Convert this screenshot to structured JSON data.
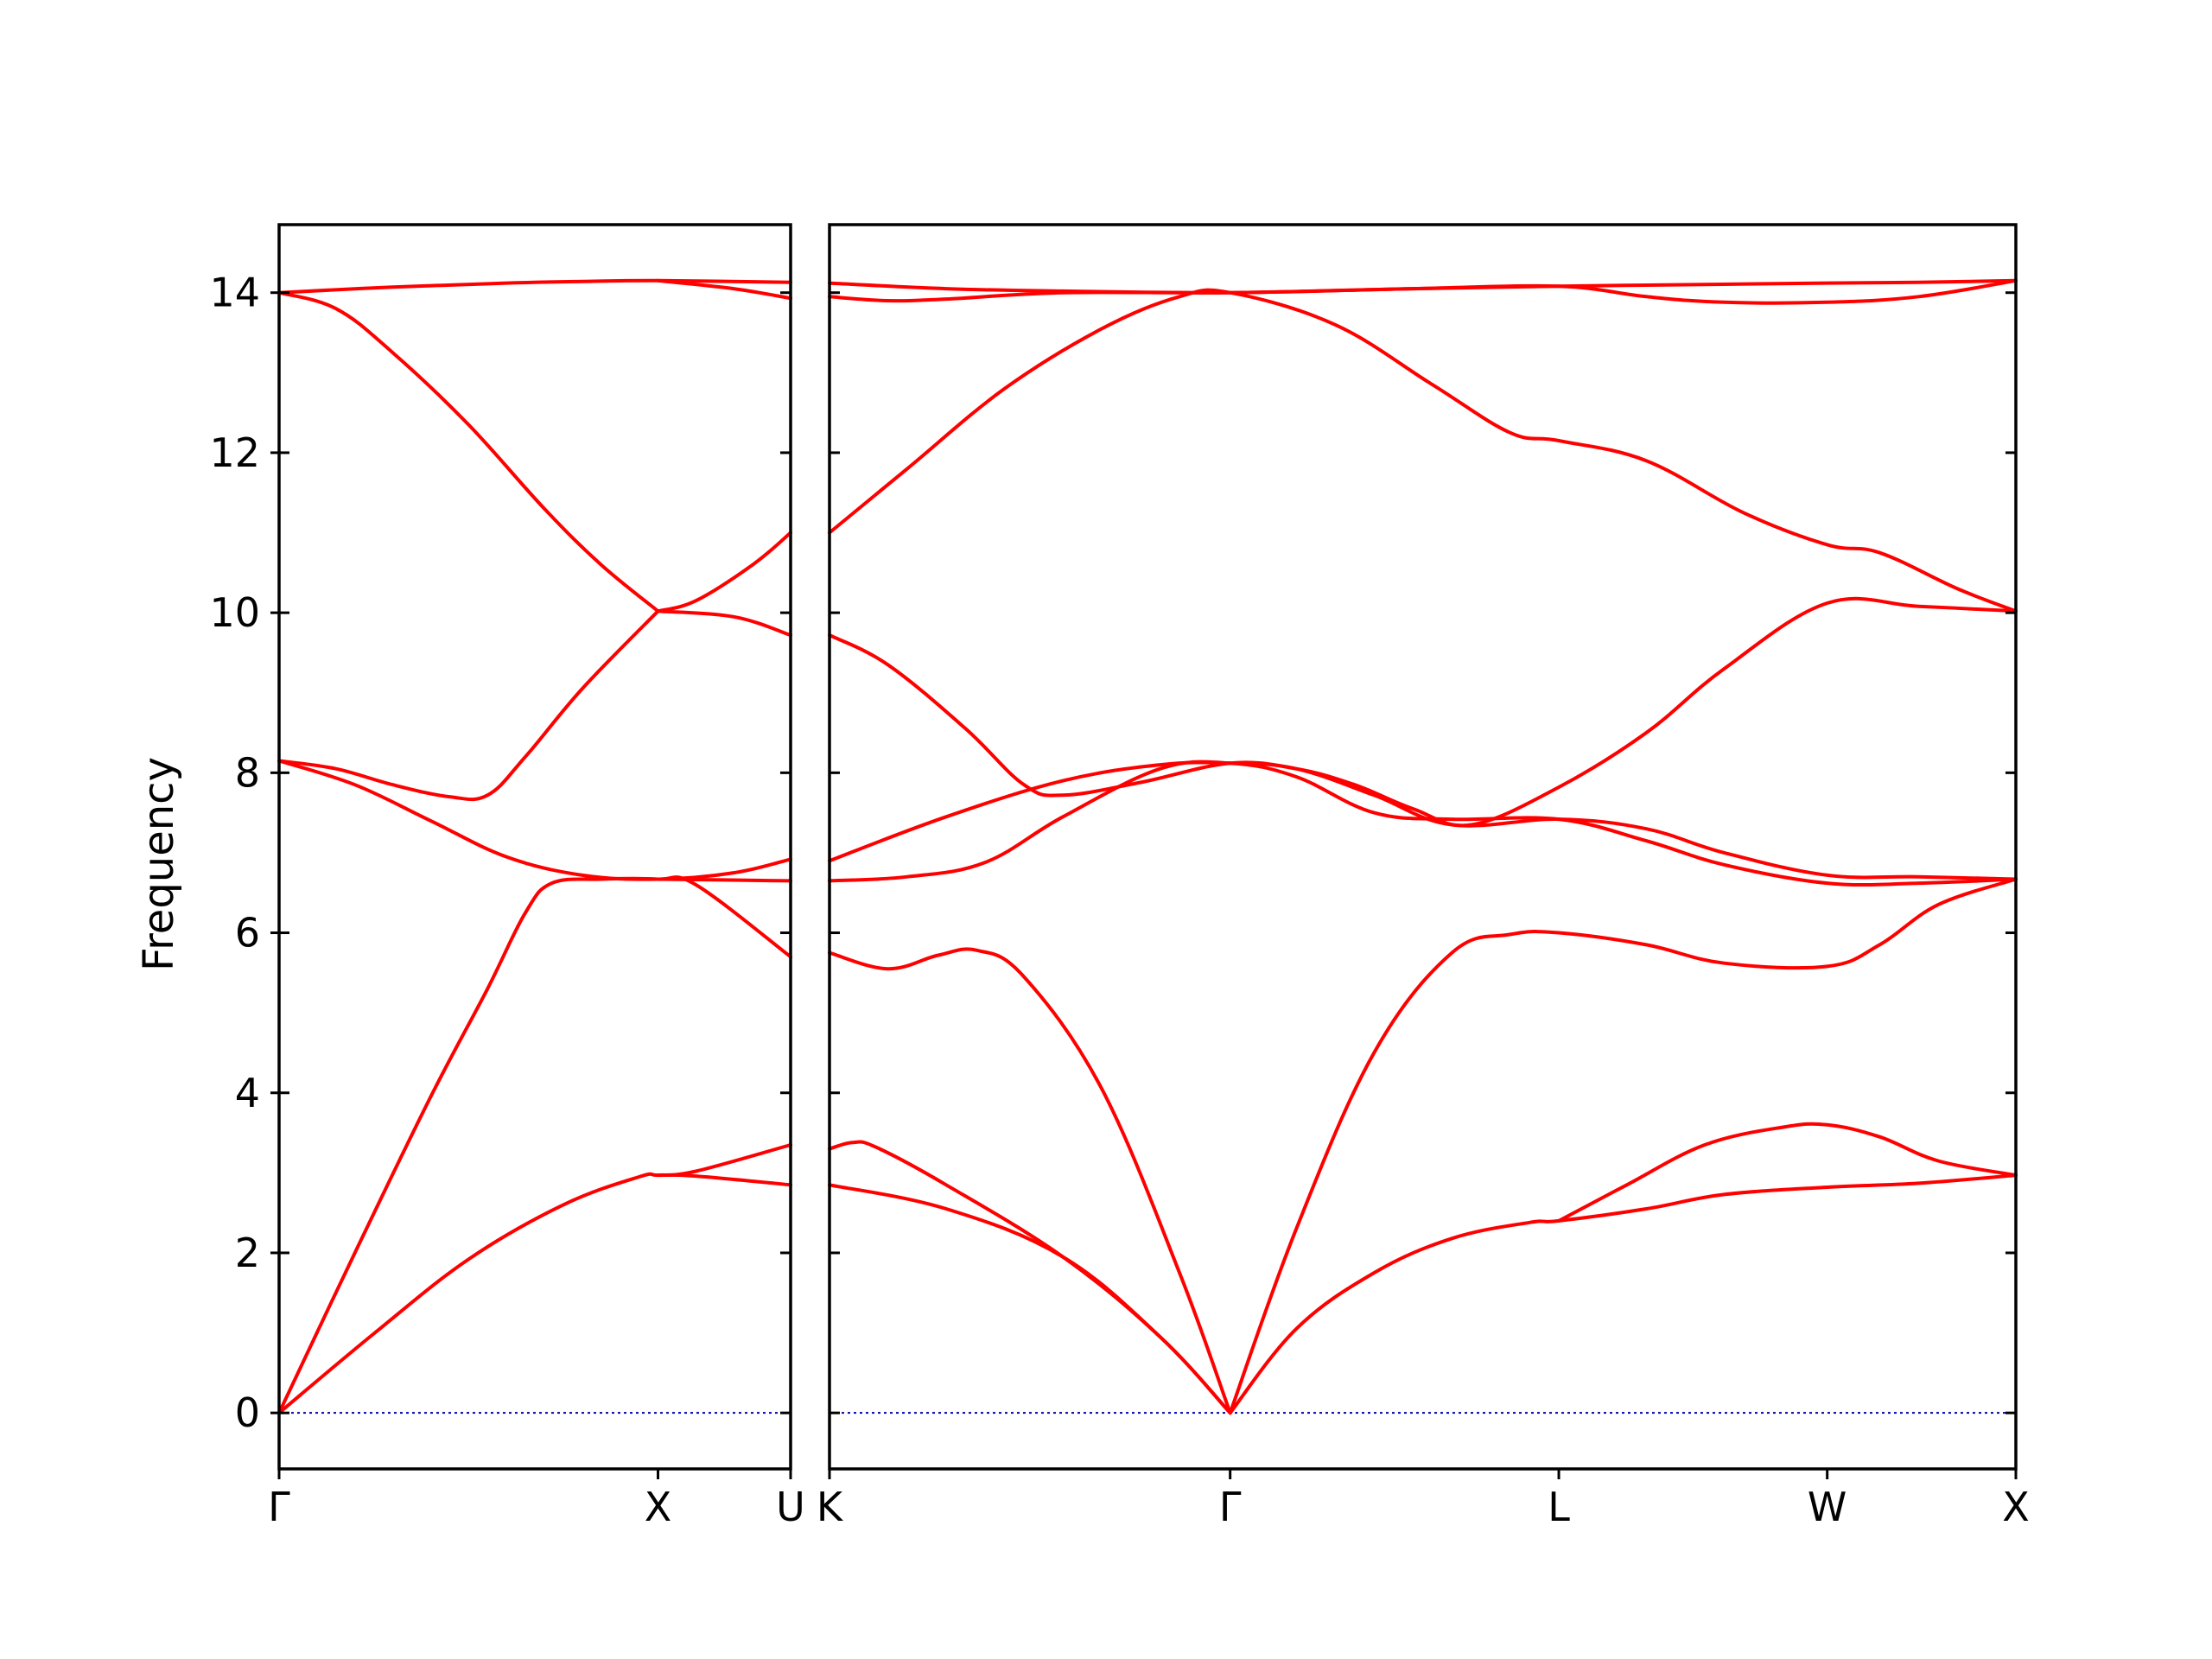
{
  "chart_data": {
    "type": "line",
    "title": "",
    "ylabel": "Frequency",
    "ylim": [
      -0.7,
      14.85
    ],
    "y_ticks": [
      0,
      2,
      4,
      6,
      8,
      10,
      12,
      14
    ],
    "grid": false,
    "line_color": "#ff0000",
    "zero_line_color": "#0000aa",
    "panels": [
      {
        "id": "left",
        "xlim": [
          0,
          1.35
        ],
        "x_ticks": [
          {
            "x": 0,
            "label": "Γ"
          },
          {
            "x": 1.0,
            "label": "X"
          },
          {
            "x": 1.35,
            "label": "U"
          }
        ],
        "zero_line": true,
        "series": [
          {
            "values": [
              [
                0,
                0
              ],
              [
                0.25,
                0.99
              ],
              [
                0.5,
                1.92
              ],
              [
                0.75,
                2.6
              ],
              [
                0.95,
                2.95
              ],
              [
                1.0,
                2.97
              ],
              [
                1.1,
                2.96
              ],
              [
                1.35,
                2.85
              ]
            ]
          },
          {
            "values": [
              [
                1.0,
                2.97
              ],
              [
                1.1,
                3.02
              ],
              [
                1.35,
                3.35
              ]
            ]
          },
          {
            "values": [
              [
                0,
                0
              ],
              [
                0.2,
                2.0
              ],
              [
                0.4,
                3.95
              ],
              [
                0.55,
                5.3
              ],
              [
                0.65,
                6.25
              ],
              [
                0.72,
                6.62
              ],
              [
                0.85,
                6.67
              ],
              [
                1.0,
                6.67
              ],
              [
                1.1,
                6.6
              ],
              [
                1.35,
                5.7
              ]
            ]
          },
          {
            "values": [
              [
                1.0,
                6.67
              ],
              [
                1.35,
                6.65
              ]
            ]
          },
          {
            "values": [
              [
                0,
                8.15
              ],
              [
                0.2,
                7.85
              ],
              [
                0.4,
                7.4
              ],
              [
                0.6,
                6.95
              ],
              [
                0.8,
                6.72
              ],
              [
                1.0,
                6.67
              ],
              [
                1.2,
                6.75
              ],
              [
                1.35,
                6.92
              ]
            ]
          },
          {
            "values": [
              [
                0,
                8.15
              ],
              [
                0.15,
                8.05
              ],
              [
                0.3,
                7.85
              ],
              [
                0.45,
                7.7
              ],
              [
                0.55,
                7.72
              ],
              [
                0.65,
                8.2
              ],
              [
                0.8,
                9.05
              ],
              [
                1.0,
                10.02
              ]
            ]
          },
          {
            "values": [
              [
                0,
                14.0
              ],
              [
                0.15,
                13.8
              ],
              [
                0.3,
                13.25
              ],
              [
                0.5,
                12.35
              ],
              [
                0.7,
                11.3
              ],
              [
                0.85,
                10.6
              ],
              [
                1.0,
                10.02
              ]
            ]
          },
          {
            "values": [
              [
                1.0,
                10.02
              ],
              [
                1.1,
                10.15
              ],
              [
                1.25,
                10.6
              ],
              [
                1.35,
                11.0
              ]
            ]
          },
          {
            "values": [
              [
                1.0,
                10.02
              ],
              [
                1.2,
                9.95
              ],
              [
                1.35,
                9.72
              ]
            ]
          },
          {
            "values": [
              [
                0,
                14.0
              ],
              [
                0.3,
                14.07
              ],
              [
                0.6,
                14.12
              ],
              [
                0.8,
                14.14
              ],
              [
                1.0,
                14.15
              ],
              [
                1.35,
                14.13
              ]
            ]
          },
          {
            "values": [
              [
                1.0,
                14.15
              ],
              [
                1.2,
                14.05
              ],
              [
                1.35,
                13.93
              ]
            ]
          }
        ]
      },
      {
        "id": "right",
        "xlim": [
          0,
          3.05
        ],
        "x_ticks": [
          {
            "x": 0,
            "label": "K"
          },
          {
            "x": 1.03,
            "label": "Γ"
          },
          {
            "x": 1.875,
            "label": "L"
          },
          {
            "x": 2.565,
            "label": "W"
          },
          {
            "x": 3.05,
            "label": "X"
          }
        ],
        "zero_line": true,
        "series": [
          {
            "values": [
              [
                0,
                2.85
              ],
              [
                0.3,
                2.55
              ],
              [
                0.6,
                1.95
              ],
              [
                0.85,
                0.95
              ],
              [
                1.03,
                0
              ]
            ]
          },
          {
            "values": [
              [
                0,
                3.3
              ],
              [
                0.06,
                3.38
              ],
              [
                0.12,
                3.32
              ],
              [
                0.3,
                2.85
              ],
              [
                0.6,
                1.95
              ],
              [
                0.85,
                0.95
              ],
              [
                1.03,
                0
              ]
            ]
          },
          {
            "values": [
              [
                0,
                5.75
              ],
              [
                0.15,
                5.55
              ],
              [
                0.28,
                5.72
              ],
              [
                0.38,
                5.78
              ],
              [
                0.5,
                5.45
              ],
              [
                0.7,
                4.05
              ],
              [
                0.9,
                1.75
              ],
              [
                1.03,
                0
              ]
            ]
          },
          {
            "values": [
              [
                1.03,
                0
              ],
              [
                1.2,
                1.05
              ],
              [
                1.4,
                1.75
              ],
              [
                1.6,
                2.18
              ],
              [
                1.8,
                2.38
              ],
              [
                1.875,
                2.4
              ],
              [
                2.1,
                2.55
              ],
              [
                2.3,
                2.73
              ],
              [
                2.565,
                2.82
              ],
              [
                2.8,
                2.87
              ],
              [
                3.05,
                2.97
              ]
            ]
          },
          {
            "values": [
              [
                1.875,
                2.4
              ],
              [
                2.05,
                2.85
              ],
              [
                2.25,
                3.35
              ],
              [
                2.45,
                3.57
              ],
              [
                2.565,
                3.6
              ],
              [
                2.7,
                3.45
              ],
              [
                2.85,
                3.15
              ],
              [
                3.05,
                2.97
              ]
            ]
          },
          {
            "values": [
              [
                1.03,
                0
              ],
              [
                1.2,
                2.3
              ],
              [
                1.4,
                4.5
              ],
              [
                1.6,
                5.75
              ],
              [
                1.75,
                5.98
              ],
              [
                1.875,
                6.0
              ],
              [
                2.1,
                5.85
              ],
              [
                2.3,
                5.62
              ],
              [
                2.565,
                5.58
              ],
              [
                2.7,
                5.85
              ],
              [
                2.85,
                6.35
              ],
              [
                3.05,
                6.67
              ]
            ]
          },
          {
            "values": [
              [
                0,
                6.65
              ],
              [
                0.2,
                6.7
              ],
              [
                0.4,
                6.88
              ],
              [
                0.6,
                7.45
              ],
              [
                0.85,
                8.05
              ],
              [
                1.03,
                8.12
              ],
              [
                1.2,
                7.95
              ],
              [
                1.4,
                7.5
              ],
              [
                1.6,
                7.42
              ],
              [
                1.875,
                7.42
              ],
              [
                2.1,
                7.15
              ],
              [
                2.3,
                6.85
              ],
              [
                2.565,
                6.62
              ],
              [
                2.8,
                6.62
              ],
              [
                3.05,
                6.67
              ]
            ]
          },
          {
            "values": [
              [
                0,
                6.9
              ],
              [
                0.3,
                7.45
              ],
              [
                0.6,
                7.9
              ],
              [
                0.85,
                8.1
              ],
              [
                1.03,
                8.12
              ],
              [
                1.2,
                8.05
              ],
              [
                1.4,
                7.72
              ],
              [
                1.6,
                7.35
              ],
              [
                1.875,
                7.42
              ],
              [
                2.1,
                7.3
              ],
              [
                2.3,
                7.0
              ],
              [
                2.565,
                6.72
              ],
              [
                2.8,
                6.7
              ],
              [
                3.05,
                6.67
              ]
            ]
          },
          {
            "values": [
              [
                0,
                9.72
              ],
              [
                0.15,
                9.35
              ],
              [
                0.35,
                8.55
              ],
              [
                0.5,
                7.85
              ],
              [
                0.6,
                7.72
              ],
              [
                0.8,
                7.88
              ],
              [
                1.03,
                8.12
              ],
              [
                1.2,
                8.05
              ],
              [
                1.35,
                7.85
              ],
              [
                1.5,
                7.55
              ],
              [
                1.65,
                7.35
              ],
              [
                1.875,
                7.82
              ],
              [
                2.1,
                8.5
              ],
              [
                2.3,
                9.3
              ],
              [
                2.565,
                10.12
              ],
              [
                2.8,
                10.08
              ],
              [
                3.05,
                10.02
              ]
            ]
          },
          {
            "values": [
              [
                0,
                11.0
              ],
              [
                0.2,
                11.8
              ],
              [
                0.45,
                12.8
              ],
              [
                0.7,
                13.55
              ],
              [
                0.9,
                13.95
              ],
              [
                1.03,
                14.0
              ],
              [
                1.3,
                13.6
              ],
              [
                1.55,
                12.85
              ],
              [
                1.75,
                12.25
              ],
              [
                1.875,
                12.15
              ],
              [
                2.1,
                11.9
              ],
              [
                2.35,
                11.25
              ],
              [
                2.565,
                10.85
              ],
              [
                2.7,
                10.75
              ],
              [
                2.9,
                10.3
              ],
              [
                3.05,
                10.02
              ]
            ]
          },
          {
            "values": [
              [
                0,
                14.12
              ],
              [
                0.3,
                14.05
              ],
              [
                0.6,
                14.02
              ],
              [
                1.03,
                14.0
              ],
              [
                1.5,
                14.05
              ],
              [
                1.875,
                14.08
              ],
              [
                2.2,
                14.1
              ],
              [
                2.565,
                14.12
              ],
              [
                2.8,
                14.13
              ],
              [
                3.05,
                14.15
              ]
            ]
          },
          {
            "values": [
              [
                0,
                13.95
              ],
              [
                0.15,
                13.9
              ],
              [
                0.3,
                13.92
              ],
              [
                0.6,
                14.0
              ],
              [
                1.03,
                14.0
              ],
              [
                1.5,
                14.05
              ],
              [
                1.875,
                14.08
              ],
              [
                2.1,
                13.95
              ],
              [
                2.3,
                13.88
              ],
              [
                2.565,
                13.88
              ],
              [
                2.8,
                13.95
              ],
              [
                3.05,
                14.15
              ]
            ]
          }
        ]
      }
    ]
  }
}
